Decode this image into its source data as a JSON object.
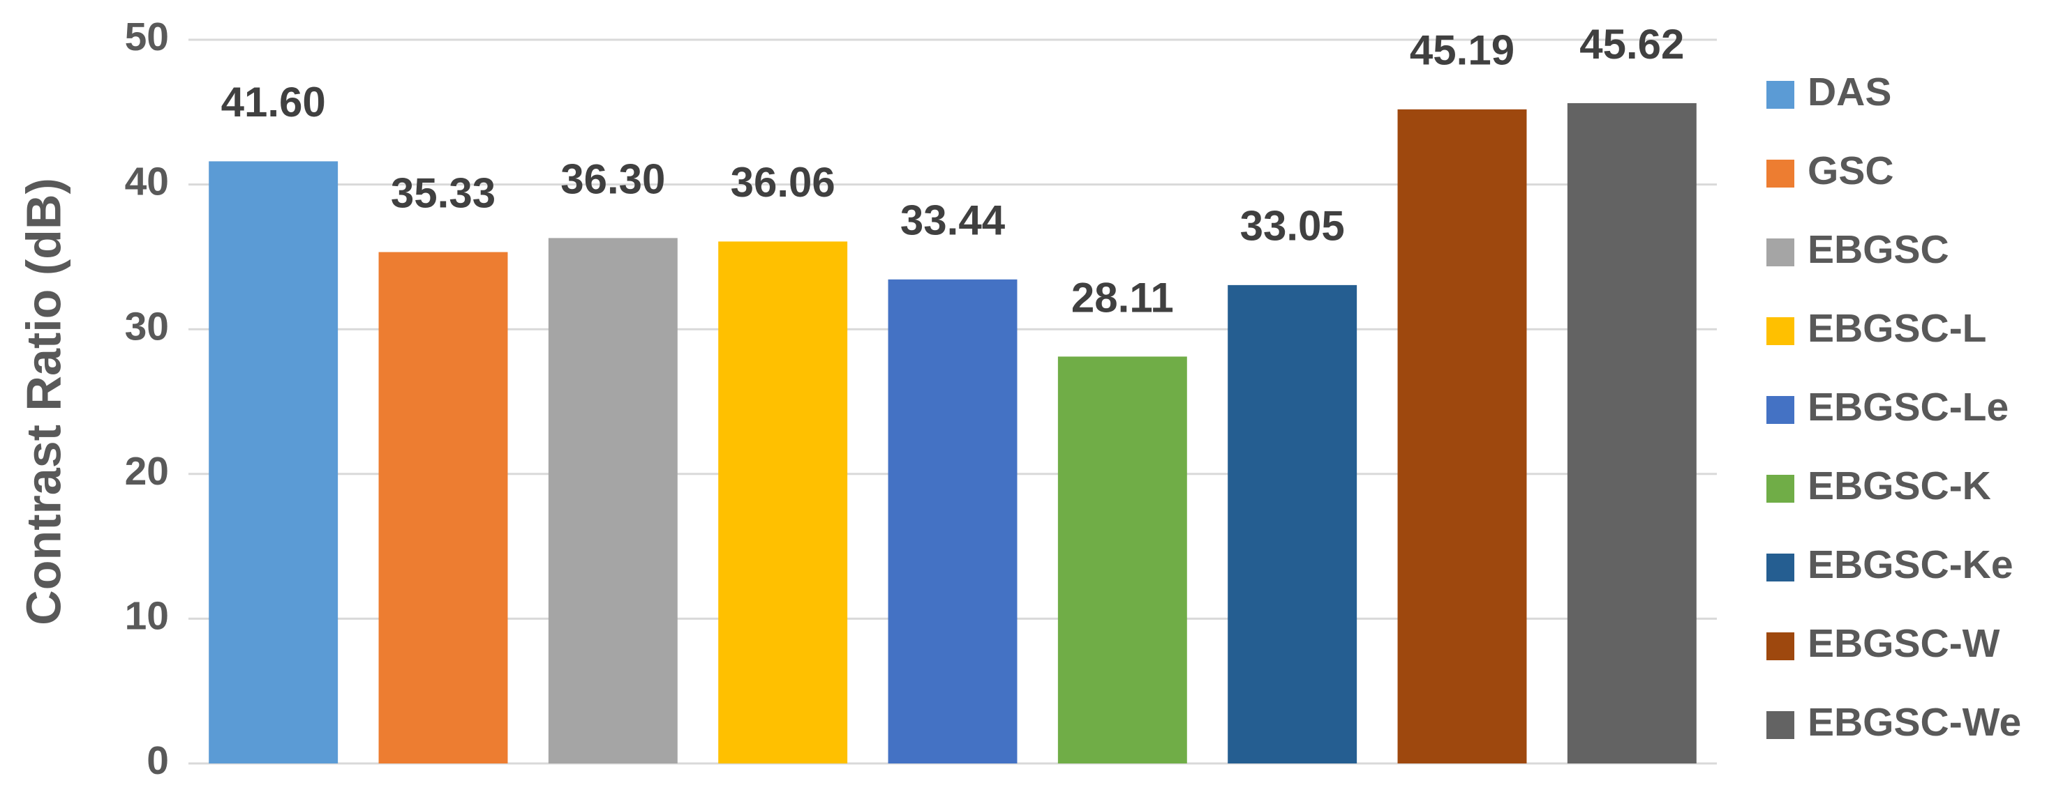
{
  "chart_data": {
    "type": "bar",
    "y_label": "Contrast Ratio (dB)",
    "ylim": [
      0,
      50
    ],
    "yticks": [
      0,
      10,
      20,
      30,
      40,
      50
    ],
    "grid": true,
    "legend": "right",
    "series": [
      {
        "name": "DAS",
        "color": "#5b9bd5",
        "values": [
          41.6
        ],
        "value_labels": [
          "41.60"
        ]
      },
      {
        "name": "GSC",
        "color": "#ed7d31",
        "values": [
          35.33
        ],
        "value_labels": [
          "35.33"
        ]
      },
      {
        "name": "EBGSC",
        "color": "#a5a5a5",
        "values": [
          36.3
        ],
        "value_labels": [
          "36.30"
        ]
      },
      {
        "name": "EBGSC-L",
        "color": "#ffc000",
        "values": [
          36.06
        ],
        "value_labels": [
          "36.06"
        ]
      },
      {
        "name": "EBGSC-Le",
        "color": "#4472c4",
        "values": [
          33.44
        ],
        "value_labels": [
          "33.44"
        ]
      },
      {
        "name": "EBGSC-K",
        "color": "#70ad47",
        "values": [
          28.11
        ],
        "value_labels": [
          "28.11"
        ]
      },
      {
        "name": "EBGSC-Ke",
        "color": "#255e91",
        "values": [
          33.05
        ],
        "value_labels": [
          "33.05"
        ]
      },
      {
        "name": "EBGSC-W",
        "color": "#9e480e",
        "values": [
          45.19
        ],
        "value_labels": [
          "45.19"
        ]
      },
      {
        "name": "EBGSC-We",
        "color": "#636363",
        "values": [
          45.62
        ],
        "value_labels": [
          "45.62"
        ]
      }
    ]
  }
}
